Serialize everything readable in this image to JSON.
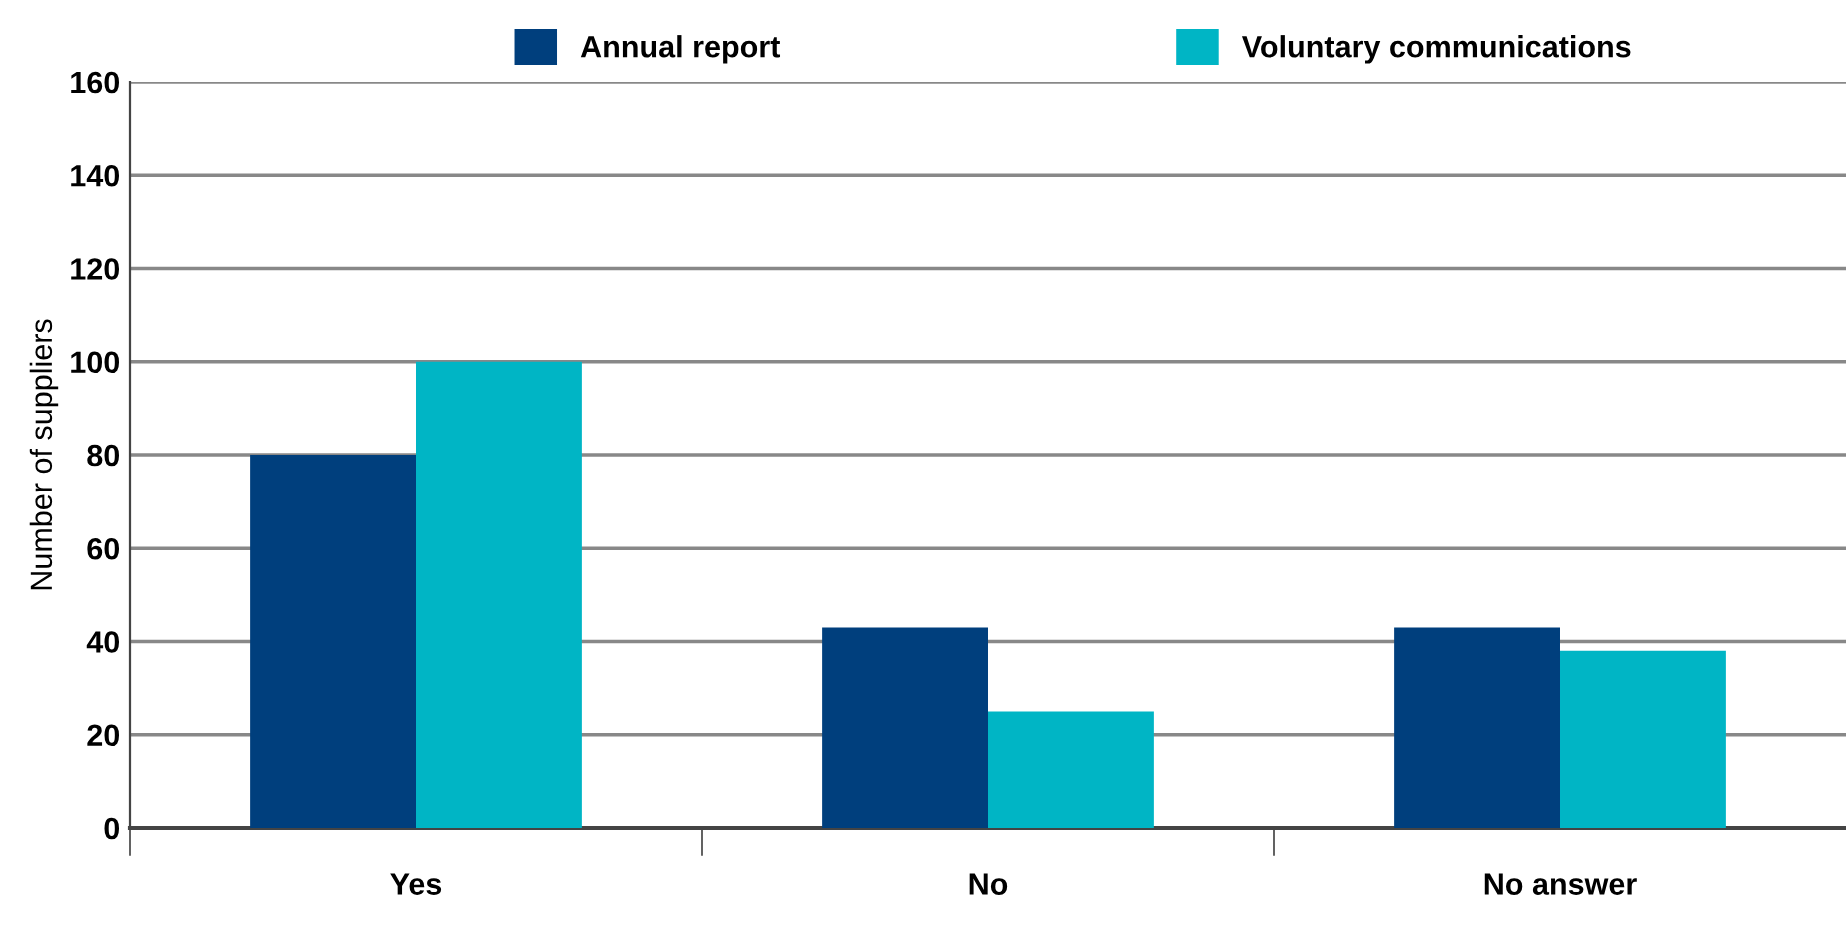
{
  "chart_data": {
    "type": "bar",
    "ylabel": "Number of suppliers",
    "categories": [
      "Yes",
      "No",
      "No answer"
    ],
    "series": [
      {
        "name": "Annual report",
        "color": "#003f7d",
        "values": [
          80,
          43,
          43
        ]
      },
      {
        "name": "Voluntary communications",
        "color": "#00b5c5",
        "values": [
          100,
          25,
          38
        ]
      }
    ],
    "ylim": [
      0,
      160
    ],
    "yticks": [
      0,
      20,
      40,
      60,
      80,
      100,
      120,
      140,
      160
    ],
    "grid": "y",
    "legend": "top"
  }
}
